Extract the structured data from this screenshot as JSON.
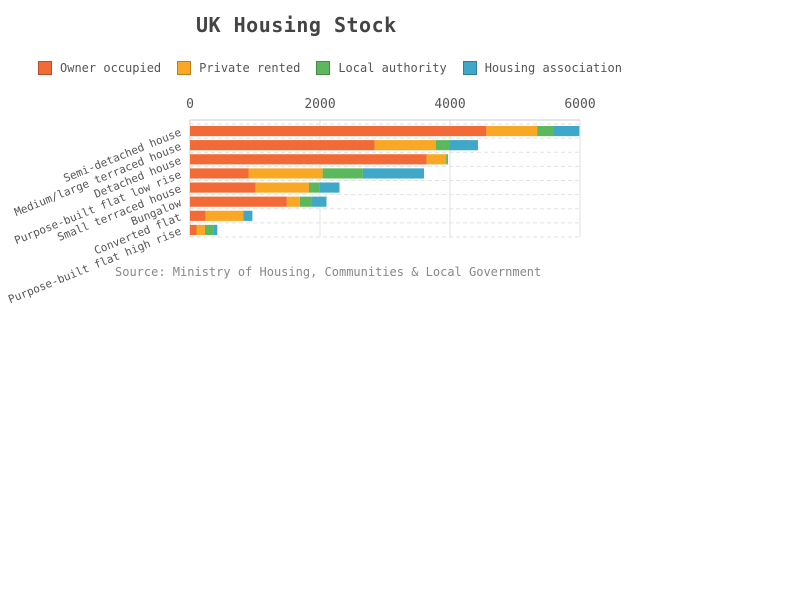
{
  "chart_data": {
    "type": "bar",
    "orientation": "horizontal",
    "stacked": true,
    "title": "UK Housing Stock",
    "source": "Source: Ministry of Housing, Communities & Local Government",
    "categories": [
      "Semi-detached house",
      "Medium/large terraced house",
      "Detached house",
      "Purpose-built flat low rise",
      "Small terraced house",
      "Bungalow",
      "Converted flat",
      "Purpose-built flat high rise"
    ],
    "series": [
      {
        "name": "Owner occupied",
        "color": "#f26a35",
        "values": [
          4560,
          2840,
          3640,
          900,
          1010,
          1490,
          240,
          100
        ]
      },
      {
        "name": "Private rented",
        "color": "#f9a825",
        "values": [
          780,
          940,
          300,
          1140,
          820,
          200,
          580,
          130
        ]
      },
      {
        "name": "Local authority",
        "color": "#5cb85c",
        "values": [
          260,
          220,
          20,
          620,
          160,
          180,
          0,
          130
        ]
      },
      {
        "name": "Housing association",
        "color": "#3fa7c8",
        "values": [
          390,
          430,
          10,
          940,
          310,
          230,
          140,
          60
        ]
      }
    ],
    "xlim": [
      0,
      6000
    ],
    "xticks": [
      "0",
      "2000",
      "4000",
      "6000"
    ],
    "xaxis_position": "top",
    "grid": true,
    "legend_position": "top"
  }
}
